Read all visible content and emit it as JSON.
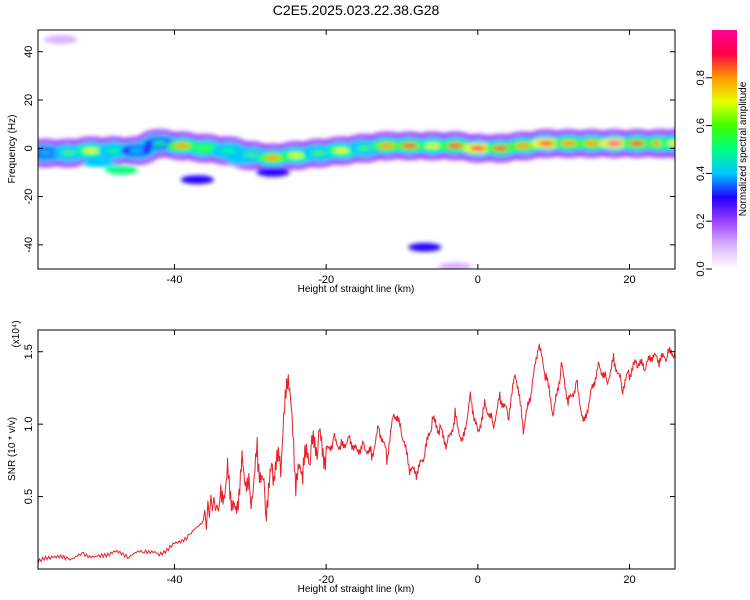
{
  "title": "C2E5.2025.023.22.38.G28",
  "colorbar": {
    "label": "Normalized spectral amplitude",
    "ticks": [
      "0.0",
      "0.2",
      "0.4",
      "0.6",
      "0.8"
    ],
    "tick_values": [
      0.0,
      0.2,
      0.4,
      0.6,
      0.8
    ],
    "range": [
      0,
      1
    ],
    "colors": [
      "#ffffff",
      "#d9b3ff",
      "#9a40ff",
      "#2200ff",
      "#00c8ff",
      "#00ff80",
      "#40ff00",
      "#e6ff00",
      "#ff9900",
      "#ff0044",
      "#ff0099"
    ]
  },
  "chart_data": [
    {
      "type": "heatmap",
      "name": "spectrogram",
      "xlabel": "Height of straight line (km)",
      "ylabel": "Frequency (Hz)",
      "xlim": [
        -58,
        26
      ],
      "ylim": [
        -50,
        49
      ],
      "x_ticks": [
        -40,
        -20,
        0,
        20
      ],
      "x_tick_labels": [
        "-40",
        "-20",
        "0",
        "20"
      ],
      "y_ticks": [
        -40,
        -20,
        0,
        20,
        40
      ],
      "y_tick_labels": [
        "-40",
        "-20",
        "0",
        "20",
        "40"
      ],
      "grid": false,
      "ridge": {
        "x": [
          -57,
          -54,
          -51,
          -48,
          -45,
          -42,
          -39,
          -36,
          -33,
          -30,
          -27,
          -24,
          -21,
          -18,
          -15,
          -12,
          -9,
          -6,
          -3,
          0,
          3,
          6,
          9,
          12,
          15,
          18,
          21,
          24,
          26
        ],
        "y": [
          -2,
          -2,
          -1,
          -1,
          -1,
          2,
          1,
          0,
          -1,
          -3,
          -4,
          -3,
          -2,
          -1,
          0,
          1,
          1,
          1,
          1,
          0,
          0,
          1,
          2,
          2,
          2,
          2,
          2,
          2,
          2
        ],
        "amplitude": [
          0.4,
          0.55,
          0.7,
          0.5,
          0.35,
          0.45,
          0.75,
          0.6,
          0.5,
          0.55,
          0.8,
          0.7,
          0.55,
          0.65,
          0.55,
          0.8,
          0.85,
          0.7,
          0.85,
          0.9,
          0.85,
          0.8,
          0.9,
          0.75,
          0.8,
          0.95,
          0.85,
          0.75,
          0.7
        ]
      },
      "blobs": [
        {
          "x": -47,
          "y": -9,
          "amplitude": 0.45
        },
        {
          "x": -50,
          "y": -6,
          "amplitude": 0.35
        },
        {
          "x": -37,
          "y": -13,
          "amplitude": 0.3
        },
        {
          "x": -27,
          "y": -10,
          "amplitude": 0.3
        },
        {
          "x": -31,
          "y": -5,
          "amplitude": 0.35
        },
        {
          "x": -7,
          "y": -41,
          "amplitude": 0.25
        },
        {
          "x": -3,
          "y": -49,
          "amplitude": 0.12
        },
        {
          "x": -55,
          "y": 45,
          "amplitude": 0.08
        }
      ]
    },
    {
      "type": "line",
      "name": "snr",
      "xlabel": "Height of straight line (km)",
      "ylabel": "SNR (10 * v/v)",
      "y_multiplier": "(x10⁴)",
      "xlim": [
        -58,
        26
      ],
      "ylim": [
        0,
        16500
      ],
      "x_ticks": [
        -40,
        -20,
        0,
        20
      ],
      "x_tick_labels": [
        "-40",
        "-20",
        "0",
        "20"
      ],
      "y_ticks": [
        5000,
        10000,
        15000
      ],
      "y_tick_labels": [
        "0.5",
        "1.0",
        "1.5"
      ],
      "grid": false,
      "color": "#e8202a",
      "x": [
        -58,
        -56,
        -54,
        -52,
        -50,
        -48,
        -46,
        -44,
        -42,
        -40,
        -38,
        -36,
        -34,
        -33,
        -32,
        -31,
        -30,
        -29,
        -28,
        -27,
        -26,
        -25,
        -24,
        -23,
        -22,
        -21,
        -20,
        -19,
        -18,
        -17,
        -16,
        -15,
        -14,
        -13,
        -12,
        -11,
        -10,
        -9,
        -8,
        -7,
        -6,
        -5,
        -4,
        -3,
        -2,
        -1,
        0,
        1,
        2,
        3,
        4,
        5,
        6,
        7,
        8,
        9,
        10,
        11,
        12,
        13,
        14,
        15,
        16,
        17,
        18,
        19,
        20,
        21,
        22,
        23,
        24,
        25,
        26
      ],
      "y": [
        500,
        900,
        700,
        1000,
        800,
        1200,
        900,
        1300,
        1000,
        1700,
        2300,
        3500,
        4600,
        6800,
        4000,
        7600,
        5000,
        8000,
        4400,
        6800,
        7200,
        13500,
        5700,
        7000,
        8000,
        8800,
        8000,
        9000,
        8500,
        9100,
        8300,
        8600,
        7900,
        9800,
        7700,
        10800,
        9300,
        6800,
        6500,
        7900,
        10200,
        9600,
        8600,
        10600,
        8800,
        12000,
        9500,
        11500,
        10000,
        11900,
        10500,
        13500,
        9600,
        12000,
        15400,
        13200,
        10600,
        14000,
        11500,
        12900,
        10100,
        12500,
        14200,
        13000,
        14500,
        12500,
        13500,
        14200,
        13800,
        14600,
        14300,
        14700,
        15000
      ]
    }
  ]
}
